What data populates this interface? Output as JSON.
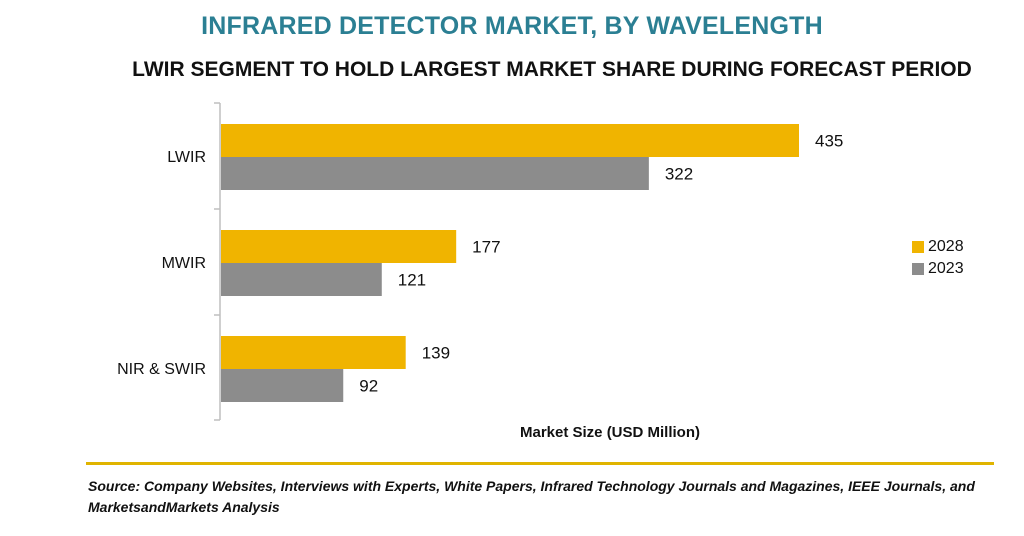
{
  "header": {
    "title": "INFRARED DETECTOR MARKET, BY WAVELENGTH",
    "subtitle": "LWIR SEGMENT TO HOLD LARGEST MARKET SHARE DURING FORECAST PERIOD"
  },
  "colors": {
    "series_2028": "#f0b400",
    "series_2023": "#8c8c8c"
  },
  "chart_data": {
    "type": "bar",
    "orientation": "horizontal",
    "categories": [
      "LWIR",
      "MWIR",
      "NIR & SWIR"
    ],
    "series": [
      {
        "name": "2028",
        "values": [
          435,
          177,
          139
        ]
      },
      {
        "name": "2023",
        "values": [
          322,
          121,
          92
        ]
      }
    ],
    "xlabel": "Market Size (USD Million)",
    "ylabel": "",
    "xlim": [
      0,
      435
    ],
    "grid": false,
    "legend": "right"
  },
  "footer": {
    "source": "Source: Company Websites, Interviews with Experts, White Papers, Infrared Technology Journals and Magazines, IEEE Journals, and MarketsandMarkets Analysis"
  }
}
